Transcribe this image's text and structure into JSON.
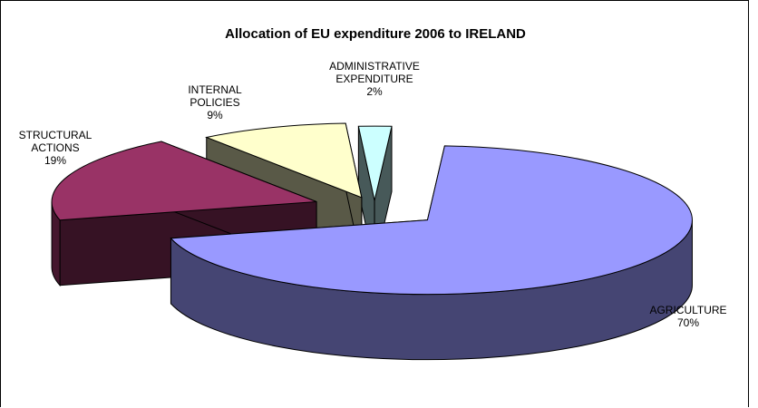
{
  "chart_data": {
    "type": "pie",
    "title": "Allocation of EU expenditure 2006 to IRELAND",
    "three_d": true,
    "exploded": true,
    "slices": [
      {
        "category": "AGRICULTURE",
        "value": 70,
        "percent_label": "70%",
        "color": "#9999ff"
      },
      {
        "category": "STRUCTURAL ACTIONS",
        "value": 19,
        "percent_label": "19%",
        "color": "#993366"
      },
      {
        "category": "INTERNAL POLICIES",
        "value": 9,
        "percent_label": "9%",
        "color": "#ffffcc"
      },
      {
        "category": "ADMINISTRATIVE EXPENDITURE",
        "value": 2,
        "percent_label": "2%",
        "color": "#ccffff"
      }
    ]
  }
}
